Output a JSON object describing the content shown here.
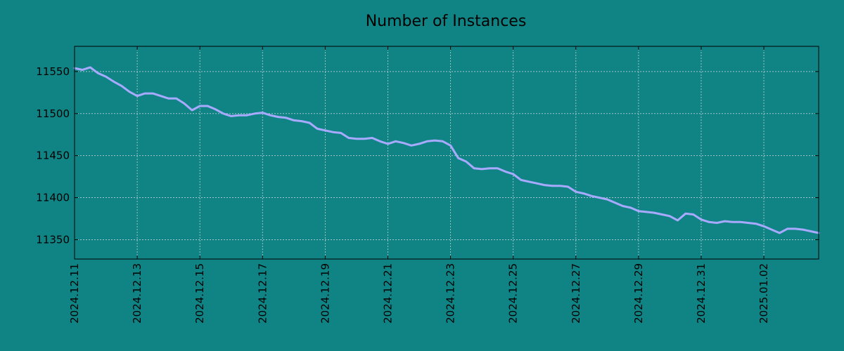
{
  "chart_data": {
    "type": "line",
    "title": "Number of Instances",
    "xlabel": "",
    "ylabel": "",
    "background_color": "#108484",
    "line_color": "#a8aaff",
    "grid": true,
    "xlim": [
      "2024-12-11",
      "2025-01-03 18:00"
    ],
    "ylim": [
      11327,
      11580
    ],
    "x_ticks": [
      "2024.12.11",
      "2024.12.13",
      "2024.12.15",
      "2024.12.17",
      "2024.12.19",
      "2024.12.21",
      "2024.12.23",
      "2024.12.25",
      "2024.12.27",
      "2024.12.29",
      "2024.12.31",
      "2025.01.02"
    ],
    "y_ticks": [
      "11350",
      "11400",
      "11450",
      "11500",
      "11550"
    ],
    "series": [
      {
        "name": "",
        "x": [
          "2024-12-11 00:00",
          "2024-12-11 06:00",
          "2024-12-11 12:00",
          "2024-12-11 18:00",
          "2024-12-12 00:00",
          "2024-12-12 06:00",
          "2024-12-12 12:00",
          "2024-12-12 18:00",
          "2024-12-13 00:00",
          "2024-12-13 06:00",
          "2024-12-13 12:00",
          "2024-12-13 18:00",
          "2024-12-14 00:00",
          "2024-12-14 06:00",
          "2024-12-14 12:00",
          "2024-12-14 18:00",
          "2024-12-15 00:00",
          "2024-12-15 06:00",
          "2024-12-15 12:00",
          "2024-12-15 18:00",
          "2024-12-16 00:00",
          "2024-12-16 06:00",
          "2024-12-16 12:00",
          "2024-12-16 18:00",
          "2024-12-17 00:00",
          "2024-12-17 06:00",
          "2024-12-17 12:00",
          "2024-12-17 18:00",
          "2024-12-18 00:00",
          "2024-12-18 06:00",
          "2024-12-18 12:00",
          "2024-12-18 18:00",
          "2024-12-19 00:00",
          "2024-12-19 06:00",
          "2024-12-19 12:00",
          "2024-12-19 18:00",
          "2024-12-20 00:00",
          "2024-12-20 06:00",
          "2024-12-20 12:00",
          "2024-12-20 18:00",
          "2024-12-21 00:00",
          "2024-12-21 06:00",
          "2024-12-21 12:00",
          "2024-12-21 18:00",
          "2024-12-22 00:00",
          "2024-12-22 06:00",
          "2024-12-22 12:00",
          "2024-12-22 18:00",
          "2024-12-23 00:00",
          "2024-12-23 06:00",
          "2024-12-23 12:00",
          "2024-12-23 18:00",
          "2024-12-24 00:00",
          "2024-12-24 06:00",
          "2024-12-24 12:00",
          "2024-12-24 18:00",
          "2024-12-25 00:00",
          "2024-12-25 06:00",
          "2024-12-25 12:00",
          "2024-12-25 18:00",
          "2024-12-26 00:00",
          "2024-12-26 06:00",
          "2024-12-26 12:00",
          "2024-12-26 18:00",
          "2024-12-27 00:00",
          "2024-12-27 06:00",
          "2024-12-27 12:00",
          "2024-12-27 18:00",
          "2024-12-28 00:00",
          "2024-12-28 06:00",
          "2024-12-28 12:00",
          "2024-12-28 18:00",
          "2024-12-29 00:00",
          "2024-12-29 06:00",
          "2024-12-29 12:00",
          "2024-12-29 18:00",
          "2024-12-30 00:00",
          "2024-12-30 06:00",
          "2024-12-30 12:00",
          "2024-12-30 18:00",
          "2024-12-31 00:00",
          "2024-12-31 06:00",
          "2024-12-31 12:00",
          "2024-12-31 18:00",
          "2025-01-01 00:00",
          "2025-01-01 06:00",
          "2025-01-01 12:00",
          "2025-01-01 18:00",
          "2025-01-02 00:00",
          "2025-01-02 06:00",
          "2025-01-02 12:00",
          "2025-01-02 18:00",
          "2025-01-03 00:00",
          "2025-01-03 06:00",
          "2025-01-03 12:00",
          "2025-01-03 18:00"
        ],
        "y": [
          11554,
          11552,
          11555,
          11548,
          11544,
          11538,
          11533,
          11526,
          11521,
          11524,
          11524,
          11521,
          11518,
          11518,
          11512,
          11504,
          11509,
          11509,
          11505,
          11500,
          11497,
          11498,
          11498,
          11500,
          11501,
          11498,
          11496,
          11495,
          11492,
          11491,
          11489,
          11482,
          11480,
          11478,
          11477,
          11471,
          11470,
          11470,
          11471,
          11467,
          11464,
          11467,
          11465,
          11462,
          11464,
          11467,
          11468,
          11467,
          11462,
          11447,
          11443,
          11435,
          11434,
          11435,
          11435,
          11431,
          11428,
          11421,
          11419,
          11417,
          11415,
          11414,
          11414,
          11413,
          11407,
          11405,
          11402,
          11400,
          11398,
          11394,
          11390,
          11388,
          11384,
          11383,
          11382,
          11380,
          11378,
          11373,
          11381,
          11380,
          11374,
          11371,
          11370,
          11372,
          11371,
          11371,
          11370,
          11369,
          11366,
          11362,
          11358,
          11363,
          11363,
          11362,
          11360,
          11358
        ]
      }
    ]
  }
}
